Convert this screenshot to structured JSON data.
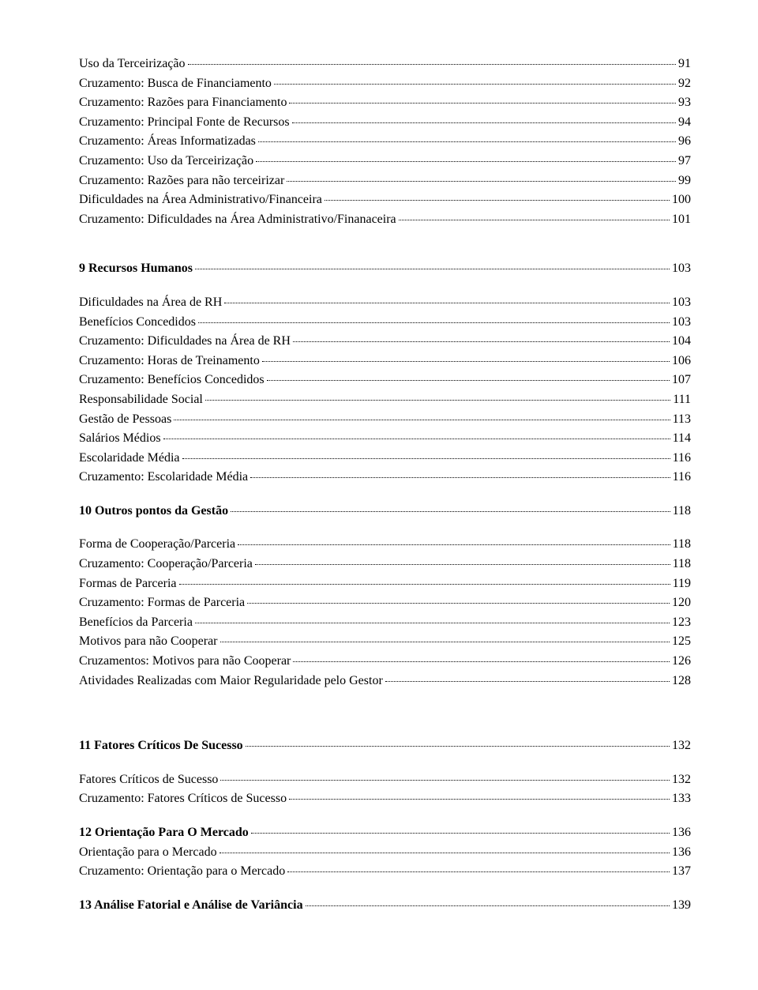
{
  "toc": [
    {
      "label": "Uso da Terceirização",
      "page": "91",
      "bold": false,
      "gapBefore": null
    },
    {
      "label": "Cruzamento: Busca de Financiamento",
      "page": "92",
      "bold": false,
      "gapBefore": null
    },
    {
      "label": "Cruzamento: Razões para Financiamento",
      "page": "93",
      "bold": false,
      "gapBefore": null
    },
    {
      "label": "Cruzamento: Principal Fonte de Recursos",
      "page": "94",
      "bold": false,
      "gapBefore": null
    },
    {
      "label": "Cruzamento: Áreas Informatizadas",
      "page": "96",
      "bold": false,
      "gapBefore": null
    },
    {
      "label": "Cruzamento: Uso da Terceirização",
      "page": "97",
      "bold": false,
      "gapBefore": null
    },
    {
      "label": "Cruzamento: Razões para não terceirizar",
      "page": "99",
      "bold": false,
      "gapBefore": null
    },
    {
      "label": "Dificuldades na Área Administrativo/Financeira",
      "page": "100",
      "bold": false,
      "gapBefore": null
    },
    {
      "label": "Cruzamento: Dificuldades na Área Administrativo/Finanaceira",
      "page": "101",
      "bold": false,
      "gapBefore": null
    },
    {
      "label": "9 Recursos Humanos",
      "page": "103",
      "bold": true,
      "gapBefore": "med"
    },
    {
      "label": "Dificuldades na Área de RH",
      "page": "103",
      "bold": false,
      "gapBefore": "small"
    },
    {
      "label": "Benefícios Concedidos",
      "page": "103",
      "bold": false,
      "gapBefore": null
    },
    {
      "label": "Cruzamento: Dificuldades na Área de RH",
      "page": "104",
      "bold": false,
      "gapBefore": null
    },
    {
      "label": "Cruzamento: Horas de Treinamento",
      "page": "106",
      "bold": false,
      "gapBefore": null
    },
    {
      "label": "Cruzamento: Benefícios Concedidos",
      "page": "107",
      "bold": false,
      "gapBefore": null
    },
    {
      "label": "Responsabilidade Social",
      "page": "111",
      "bold": false,
      "gapBefore": null
    },
    {
      "label": "Gestão de Pessoas",
      "page": "113",
      "bold": false,
      "gapBefore": null
    },
    {
      "label": "Salários Médios",
      "page": "114",
      "bold": false,
      "gapBefore": null
    },
    {
      "label": "Escolaridade Média",
      "page": "116",
      "bold": false,
      "gapBefore": null
    },
    {
      "label": "Cruzamento: Escolaridade Média",
      "page": "116",
      "bold": false,
      "gapBefore": null
    },
    {
      "label": "10 Outros pontos da Gestão",
      "page": "118",
      "bold": true,
      "gapBefore": "small"
    },
    {
      "label": "Forma de Cooperação/Parceria",
      "page": "118",
      "bold": false,
      "gapBefore": "small"
    },
    {
      "label": "Cruzamento: Cooperação/Parceria",
      "page": "118",
      "bold": false,
      "gapBefore": null
    },
    {
      "label": "Formas de Parceria",
      "page": "119",
      "bold": false,
      "gapBefore": null
    },
    {
      "label": "Cruzamento: Formas de Parceria",
      "page": "120",
      "bold": false,
      "gapBefore": null
    },
    {
      "label": "Benefícios da Parceria",
      "page": "123",
      "bold": false,
      "gapBefore": null
    },
    {
      "label": "Motivos para não Cooperar",
      "page": "125",
      "bold": false,
      "gapBefore": null
    },
    {
      "label": "Cruzamentos: Motivos para não Cooperar",
      "page": "126",
      "bold": false,
      "gapBefore": null
    },
    {
      "label": "Atividades Realizadas com Maior Regularidade pelo Gestor",
      "page": "128",
      "bold": false,
      "gapBefore": null
    },
    {
      "label": "11 Fatores Críticos De Sucesso",
      "page": "132",
      "bold": true,
      "gapBefore": "large"
    },
    {
      "label": "Fatores Críticos de Sucesso",
      "page": "132",
      "bold": false,
      "gapBefore": "small"
    },
    {
      "label": "Cruzamento: Fatores Críticos de Sucesso",
      "page": "133",
      "bold": false,
      "gapBefore": null
    },
    {
      "label": "12 Orientação Para O Mercado",
      "page": "136",
      "bold": true,
      "gapBefore": "small"
    },
    {
      "label": "Orientação para o Mercado",
      "page": "136",
      "bold": false,
      "gapBefore": null
    },
    {
      "label": "Cruzamento: Orientação para o Mercado",
      "page": "137",
      "bold": false,
      "gapBefore": null
    },
    {
      "label": "13  Análise Fatorial e Análise de Variância",
      "page": "139",
      "bold": true,
      "gapBefore": "small"
    }
  ]
}
